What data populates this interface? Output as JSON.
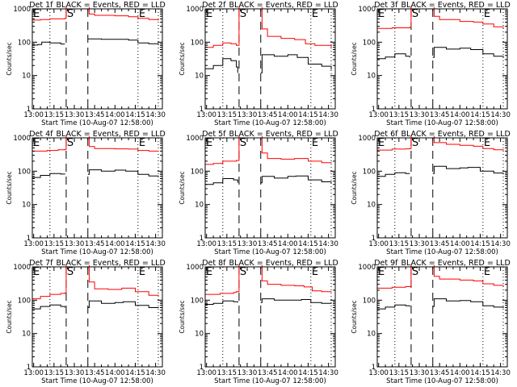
{
  "chart_data": {
    "type": "line",
    "layout": "3x3 grid",
    "shared": {
      "title_suffix": "BLACK = Events, RED = LLD",
      "xlabel": "Start Time (10-Aug-07 12:58:00)",
      "ylabel": "Counts/sec",
      "yscale": "log",
      "ylim": [
        1,
        1000
      ],
      "yticks": [
        1,
        10,
        100,
        1000
      ],
      "ytick_labels": [
        "1",
        "10",
        "100",
        "1000"
      ],
      "xlim_minutes": [
        -1,
        95
      ],
      "xticks_minutes": [
        0,
        15,
        30,
        45,
        60,
        75,
        90
      ],
      "xtick_labels": [
        "13:00",
        "13:15",
        "13:30",
        "13:45",
        "14:00",
        "14:15",
        "14:30"
      ],
      "dotted_lines_minutes": [
        12,
        77,
        92
      ],
      "dashed_lines_minutes": [
        24,
        40
      ],
      "markers": [
        {
          "label": "E",
          "minute": -1
        },
        {
          "label": "S",
          "minute": 24
        },
        {
          "label": "E",
          "minute": 77
        }
      ],
      "gap_minutes": [
        24,
        40
      ],
      "series_colors": {
        "events": "#000000",
        "lld": "#ff0000"
      },
      "legend": "in-title"
    },
    "panels": [
      {
        "detector": "1f",
        "title": "Det 1f",
        "series": [
          {
            "name": "LLD",
            "color": "#ff0000",
            "x": [
              -1,
              5,
              12,
              20,
              23,
              24,
              40,
              41,
              45,
              60,
              70,
              77,
              85,
              92
            ],
            "y": [
              460,
              480,
              500,
              500,
              520,
              1200,
              1200,
              700,
              640,
              620,
              580,
              520,
              480,
              450
            ]
          },
          {
            "name": "Events",
            "color": "#000000",
            "x": [
              -1,
              3,
              6,
              12,
              20,
              23,
              40,
              41,
              50,
              60,
              70,
              77,
              85,
              92
            ],
            "y": [
              82,
              85,
              100,
              95,
              88,
              88,
              125,
              125,
              122,
              122,
              115,
              95,
              90,
              85
            ]
          }
        ]
      },
      {
        "detector": "2f",
        "title": "Det 2f",
        "series": [
          {
            "name": "LLD",
            "color": "#ff0000",
            "x": [
              -1,
              5,
              12,
              18,
              22,
              24,
              40,
              41,
              45,
              55,
              65,
              73,
              80,
              92
            ],
            "y": [
              70,
              80,
              95,
              90,
              80,
              1200,
              1200,
              250,
              150,
              130,
              120,
              90,
              80,
              70
            ]
          },
          {
            "name": "Events",
            "color": "#000000",
            "x": [
              -1,
              5,
              12,
              18,
              22,
              23,
              40,
              41,
              50,
              60,
              67,
              75,
              85,
              92
            ],
            "y": [
              16,
              20,
              32,
              28,
              18,
              12,
              12,
              42,
              38,
              42,
              35,
              22,
              19,
              15
            ]
          }
        ]
      },
      {
        "detector": "3f",
        "title": "Det 3f",
        "series": [
          {
            "name": "LLD",
            "color": "#ff0000",
            "x": [
              -1,
              10,
              20,
              23,
              24,
              40,
              41,
              45,
              60,
              70,
              77,
              85,
              92
            ],
            "y": [
              260,
              270,
              270,
              280,
              1200,
              1200,
              600,
              480,
              420,
              400,
              350,
              290,
              270
            ]
          },
          {
            "name": "Events",
            "color": "#000000",
            "x": [
              -1,
              5,
              12,
              20,
              23,
              40,
              41,
              50,
              60,
              68,
              77,
              85,
              92
            ],
            "y": [
              32,
              36,
              45,
              38,
              35,
              35,
              70,
              62,
              66,
              60,
              45,
              38,
              36
            ]
          }
        ]
      },
      {
        "detector": "4f",
        "title": "Det 4f",
        "series": [
          {
            "name": "LLD",
            "color": "#ff0000",
            "x": [
              -1,
              10,
              18,
              23,
              24,
              40,
              41,
              45,
              60,
              70,
              77,
              85,
              92
            ],
            "y": [
              400,
              420,
              440,
              450,
              1200,
              1200,
              550,
              480,
              470,
              460,
              420,
              400,
              400
            ]
          },
          {
            "name": "Events",
            "color": "#000000",
            "x": [
              -1,
              5,
              12,
              20,
              23,
              40,
              41,
              50,
              60,
              68,
              77,
              85,
              92
            ],
            "y": [
              65,
              75,
              85,
              82,
              80,
              80,
              110,
              100,
              108,
              100,
              80,
              72,
              70
            ]
          }
        ]
      },
      {
        "detector": "5f",
        "title": "Det 5f",
        "series": [
          {
            "name": "LLD",
            "color": "#ff0000",
            "x": [
              -1,
              5,
              12,
              20,
              22,
              24,
              40,
              41,
              45,
              55,
              65,
              75,
              85,
              92
            ],
            "y": [
              160,
              170,
              200,
              200,
              210,
              1200,
              1200,
              350,
              240,
              230,
              240,
              200,
              180,
              175
            ]
          },
          {
            "name": "Events",
            "color": "#000000",
            "x": [
              -1,
              5,
              12,
              20,
              23,
              40,
              41,
              50,
              60,
              66,
              75,
              85,
              92
            ],
            "y": [
              40,
              45,
              60,
              55,
              45,
              45,
              70,
              62,
              70,
              72,
              55,
              48,
              45
            ]
          }
        ]
      },
      {
        "detector": "6f",
        "title": "Det 6f",
        "series": [
          {
            "name": "LLD",
            "color": "#ff0000",
            "x": [
              -1,
              10,
              20,
              23,
              24,
              40,
              41,
              50,
              60,
              70,
              77,
              85,
              92
            ],
            "y": [
              430,
              460,
              470,
              480,
              1200,
              1200,
              720,
              640,
              600,
              560,
              480,
              440,
              420
            ]
          },
          {
            "name": "Events",
            "color": "#000000",
            "x": [
              -1,
              5,
              12,
              20,
              23,
              40,
              41,
              50,
              60,
              66,
              75,
              85,
              92
            ],
            "y": [
              70,
              80,
              90,
              85,
              85,
              85,
              140,
              120,
              125,
              130,
              100,
              88,
              80
            ]
          }
        ]
      },
      {
        "detector": "7f",
        "title": "Det 7f",
        "series": [
          {
            "name": "LLD",
            "color": "#ff0000",
            "x": [
              -1,
              5,
              12,
              20,
              23,
              24,
              40,
              41,
              45,
              55,
              65,
              75,
              85,
              92
            ],
            "y": [
              110,
              130,
              150,
              160,
              165,
              1200,
              1200,
              350,
              220,
              210,
              230,
              180,
              140,
              130
            ]
          },
          {
            "name": "Events",
            "color": "#000000",
            "x": [
              -1,
              5,
              12,
              20,
              23,
              40,
              41,
              50,
              60,
              66,
              75,
              85,
              92
            ],
            "y": [
              55,
              65,
              72,
              65,
              60,
              60,
              95,
              80,
              85,
              90,
              70,
              60,
              58
            ]
          }
        ]
      },
      {
        "detector": "8f",
        "title": "Det 8f",
        "series": [
          {
            "name": "LLD",
            "color": "#ff0000",
            "x": [
              -1,
              10,
              20,
              22,
              24,
              40,
              41,
              45,
              55,
              65,
              72,
              78,
              85,
              92
            ],
            "y": [
              150,
              160,
              170,
              180,
              1200,
              1200,
              380,
              300,
              280,
              270,
              250,
              190,
              180,
              175
            ]
          },
          {
            "name": "Events",
            "color": "#000000",
            "x": [
              -1,
              5,
              12,
              20,
              23,
              40,
              41,
              50,
              60,
              70,
              77,
              85,
              92
            ],
            "y": [
              75,
              80,
              95,
              90,
              85,
              85,
              110,
              100,
              100,
              105,
              85,
              80,
              82
            ]
          }
        ]
      },
      {
        "detector": "9f",
        "title": "Det 9f",
        "series": [
          {
            "name": "LLD",
            "color": "#ff0000",
            "x": [
              -1,
              10,
              20,
              23,
              24,
              40,
              41,
              45,
              60,
              70,
              77,
              85,
              92
            ],
            "y": [
              230,
              245,
              255,
              260,
              1200,
              1200,
              520,
              430,
              400,
              380,
              310,
              280,
              270
            ]
          },
          {
            "name": "Events",
            "color": "#000000",
            "x": [
              -1,
              5,
              12,
              20,
              23,
              40,
              41,
              50,
              60,
              68,
              77,
              85,
              92
            ],
            "y": [
              55,
              62,
              72,
              68,
              65,
              65,
              110,
              95,
              98,
              90,
              68,
              62,
              58
            ]
          }
        ]
      }
    ]
  }
}
